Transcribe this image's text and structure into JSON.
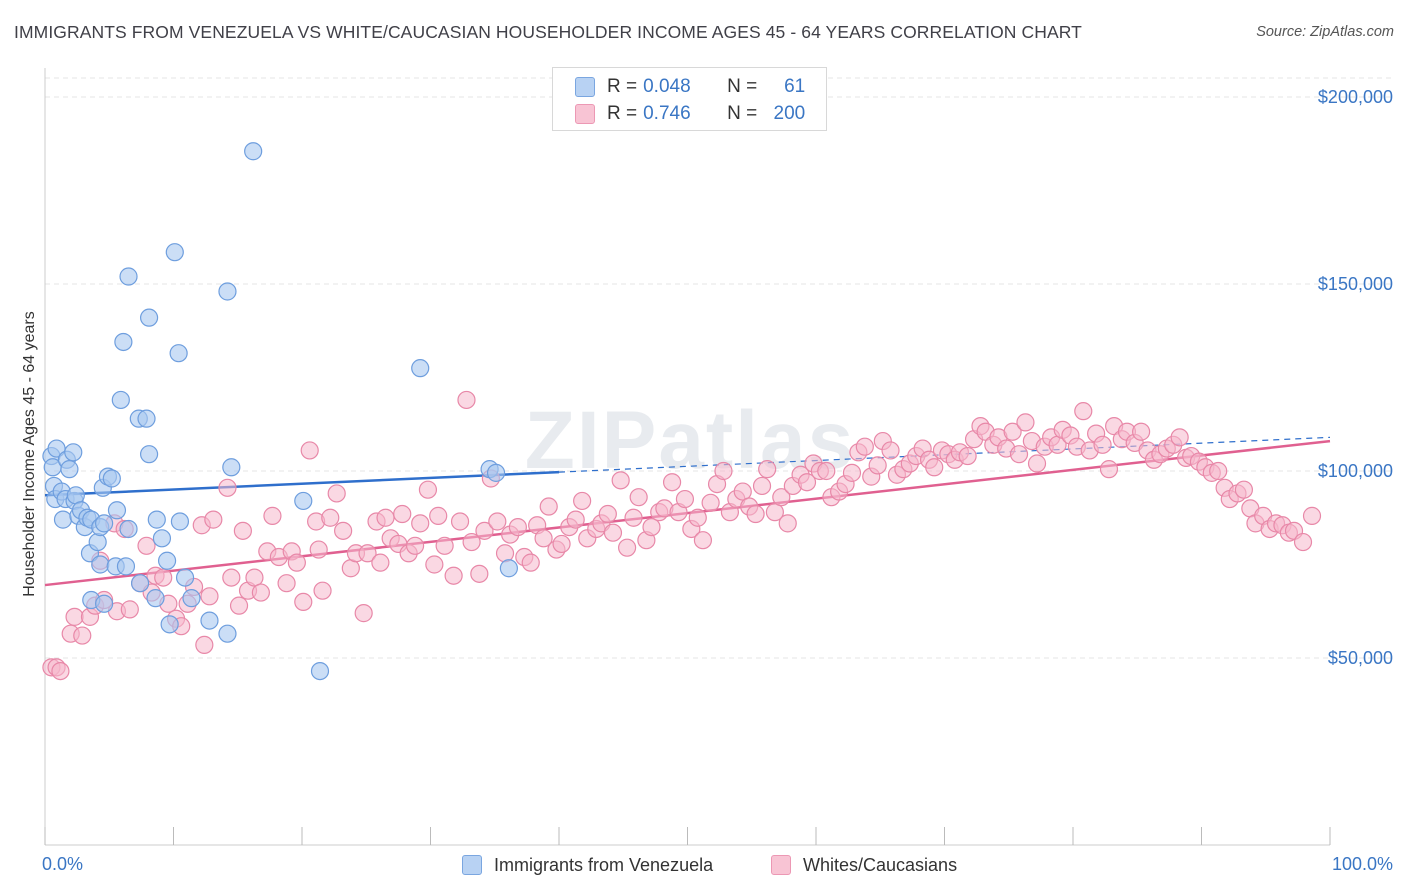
{
  "title": "IMMIGRANTS FROM VENEZUELA VS WHITE/CAUCASIAN HOUSEHOLDER INCOME AGES 45 - 64 YEARS CORRELATION CHART",
  "source": "Source: ZipAtlas.com",
  "watermark": "ZIPatlas",
  "colors": {
    "blue_fill": "#a9c8f0",
    "blue_stroke": "#6e9ede",
    "blue_line": "#2f6fcc",
    "pink_fill": "#f5b8cc",
    "pink_stroke": "#e888a8",
    "pink_line": "#e06090",
    "axis_text": "#3a76c4"
  },
  "legend": {
    "rows": [
      {
        "r_label": "R =",
        "r_value": "0.048",
        "n_label": "N =",
        "n_value": "61"
      },
      {
        "r_label": "R =",
        "r_value": "0.746",
        "n_label": "N =",
        "n_value": "200"
      }
    ]
  },
  "chart_data": {
    "type": "scatter",
    "title": "IMMIGRANTS FROM VENEZUELA VS WHITE/CAUCASIAN HOUSEHOLDER INCOME AGES 45 - 64 YEARS CORRELATION CHART",
    "xlabel": "",
    "ylabel": "Householder Income Ages 45 - 64 years",
    "xlim": [
      0,
      100
    ],
    "ylim": [
      0,
      210000
    ],
    "x_tick_labels": [
      "0.0%",
      "100.0%"
    ],
    "y_tick_labels": [
      "$50,000",
      "$100,000",
      "$150,000",
      "$200,000"
    ],
    "y_ticks": [
      50000,
      100000,
      150000,
      200000
    ],
    "grid": true,
    "legend_position": "top-center",
    "series": [
      {
        "name": "Immigrants from Venezuela",
        "R": 0.048,
        "N": 61,
        "trend": {
          "x0": 0,
          "y0": 93500,
          "x1": 100,
          "y1": 109000,
          "solid_until": 40
        },
        "points": [
          [
            0.5,
            104000
          ],
          [
            0.6,
            101000
          ],
          [
            0.7,
            96000
          ],
          [
            0.8,
            92500
          ],
          [
            0.9,
            106000
          ],
          [
            1.3,
            94500
          ],
          [
            1.4,
            87000
          ],
          [
            1.6,
            92500
          ],
          [
            1.7,
            103000
          ],
          [
            1.9,
            100500
          ],
          [
            2.2,
            105000
          ],
          [
            2.3,
            92000
          ],
          [
            2.4,
            93500
          ],
          [
            2.6,
            88000
          ],
          [
            2.8,
            89500
          ],
          [
            3.1,
            85000
          ],
          [
            3.3,
            87500
          ],
          [
            3.5,
            78000
          ],
          [
            3.6,
            87000
          ],
          [
            3.6,
            65500
          ],
          [
            4.1,
            81000
          ],
          [
            4.3,
            85000
          ],
          [
            4.3,
            75000
          ],
          [
            4.5,
            95500
          ],
          [
            4.6,
            64500
          ],
          [
            4.6,
            86000
          ],
          [
            4.9,
            98500
          ],
          [
            5.2,
            98000
          ],
          [
            5.5,
            74500
          ],
          [
            5.6,
            89500
          ],
          [
            5.9,
            119000
          ],
          [
            6.1,
            134500
          ],
          [
            6.3,
            74500
          ],
          [
            6.5,
            84500
          ],
          [
            6.5,
            152000
          ],
          [
            7.4,
            70000
          ],
          [
            7.3,
            114000
          ],
          [
            7.9,
            114000
          ],
          [
            8.1,
            104500
          ],
          [
            8.1,
            141000
          ],
          [
            8.6,
            66000
          ],
          [
            8.7,
            87000
          ],
          [
            9.1,
            82000
          ],
          [
            9.5,
            76000
          ],
          [
            9.7,
            59000
          ],
          [
            10.1,
            158500
          ],
          [
            10.4,
            131500
          ],
          [
            10.5,
            86500
          ],
          [
            10.9,
            71500
          ],
          [
            11.4,
            66000
          ],
          [
            12.8,
            60000
          ],
          [
            14.2,
            148000
          ],
          [
            14.2,
            56500
          ],
          [
            14.5,
            101000
          ],
          [
            16.2,
            185500
          ],
          [
            20.1,
            92000
          ],
          [
            21.4,
            46500
          ],
          [
            29.2,
            127500
          ],
          [
            34.6,
            100500
          ],
          [
            35.1,
            99500
          ],
          [
            36.1,
            74000
          ]
        ]
      },
      {
        "name": "Whites/Caucasians",
        "R": 0.746,
        "N": 200,
        "trend": {
          "x0": 0,
          "y0": 69500,
          "x1": 100,
          "y1": 108000
        },
        "points": [
          [
            0.5,
            47500
          ],
          [
            0.9,
            47500
          ],
          [
            1.2,
            46500
          ],
          [
            2.0,
            56500
          ],
          [
            2.3,
            61000
          ],
          [
            2.9,
            56000
          ],
          [
            3.5,
            61000
          ],
          [
            3.9,
            64000
          ],
          [
            4.3,
            76000
          ],
          [
            4.6,
            65500
          ],
          [
            5.4,
            86000
          ],
          [
            5.6,
            62500
          ],
          [
            6.2,
            84500
          ],
          [
            6.6,
            63000
          ],
          [
            7.4,
            70000
          ],
          [
            7.9,
            80000
          ],
          [
            8.3,
            67500
          ],
          [
            8.6,
            72000
          ],
          [
            9.2,
            71500
          ],
          [
            9.6,
            64500
          ],
          [
            10.2,
            60500
          ],
          [
            10.6,
            58500
          ],
          [
            11.1,
            64500
          ],
          [
            11.6,
            69000
          ],
          [
            12.2,
            85500
          ],
          [
            12.4,
            53500
          ],
          [
            12.8,
            66500
          ],
          [
            13.1,
            87000
          ],
          [
            14.2,
            95500
          ],
          [
            14.5,
            71500
          ],
          [
            15.1,
            64000
          ],
          [
            15.4,
            84000
          ],
          [
            15.8,
            68000
          ],
          [
            16.3,
            71500
          ],
          [
            16.8,
            67500
          ],
          [
            17.3,
            78500
          ],
          [
            17.7,
            88000
          ],
          [
            18.2,
            77000
          ],
          [
            18.8,
            70000
          ],
          [
            19.2,
            78500
          ],
          [
            19.6,
            75500
          ],
          [
            20.1,
            65000
          ],
          [
            20.6,
            105500
          ],
          [
            21.1,
            86500
          ],
          [
            21.3,
            79000
          ],
          [
            21.6,
            68000
          ],
          [
            22.2,
            87500
          ],
          [
            22.7,
            94000
          ],
          [
            23.2,
            84000
          ],
          [
            23.8,
            74000
          ],
          [
            24.2,
            78000
          ],
          [
            24.8,
            62000
          ],
          [
            25.1,
            78000
          ],
          [
            25.8,
            86500
          ],
          [
            26.1,
            75500
          ],
          [
            26.5,
            87500
          ],
          [
            26.9,
            82000
          ],
          [
            27.5,
            80500
          ],
          [
            27.8,
            88500
          ],
          [
            28.3,
            78000
          ],
          [
            28.8,
            80000
          ],
          [
            29.2,
            86000
          ],
          [
            29.8,
            95000
          ],
          [
            30.3,
            75000
          ],
          [
            30.6,
            88000
          ],
          [
            31.1,
            80000
          ],
          [
            31.8,
            72000
          ],
          [
            32.3,
            86500
          ],
          [
            32.8,
            119000
          ],
          [
            33.2,
            81000
          ],
          [
            33.8,
            72500
          ],
          [
            34.2,
            84000
          ],
          [
            34.7,
            98000
          ],
          [
            35.2,
            86500
          ],
          [
            35.8,
            78000
          ],
          [
            36.2,
            83000
          ],
          [
            36.8,
            85000
          ],
          [
            37.3,
            77000
          ],
          [
            37.8,
            75500
          ],
          [
            38.3,
            85500
          ],
          [
            38.8,
            82000
          ],
          [
            39.2,
            90500
          ],
          [
            39.8,
            79000
          ],
          [
            40.2,
            80500
          ],
          [
            40.8,
            85000
          ],
          [
            41.3,
            87000
          ],
          [
            41.8,
            92000
          ],
          [
            42.2,
            82000
          ],
          [
            42.9,
            84500
          ],
          [
            43.3,
            86000
          ],
          [
            43.8,
            88500
          ],
          [
            44.2,
            83500
          ],
          [
            44.8,
            97500
          ],
          [
            45.3,
            79500
          ],
          [
            45.8,
            87500
          ],
          [
            46.2,
            93000
          ],
          [
            46.8,
            81500
          ],
          [
            47.2,
            85000
          ],
          [
            47.8,
            89000
          ],
          [
            48.2,
            90000
          ],
          [
            48.8,
            97000
          ],
          [
            49.3,
            89000
          ],
          [
            49.8,
            92500
          ],
          [
            50.3,
            84500
          ],
          [
            50.8,
            87500
          ],
          [
            51.2,
            81500
          ],
          [
            51.8,
            91500
          ],
          [
            52.3,
            96500
          ],
          [
            52.8,
            100000
          ],
          [
            53.3,
            89000
          ],
          [
            53.8,
            92500
          ],
          [
            54.3,
            94500
          ],
          [
            54.8,
            90500
          ],
          [
            55.3,
            88500
          ],
          [
            55.8,
            96000
          ],
          [
            56.2,
            100500
          ],
          [
            56.8,
            89000
          ],
          [
            57.3,
            93000
          ],
          [
            57.8,
            86000
          ],
          [
            58.2,
            96000
          ],
          [
            58.8,
            99000
          ],
          [
            59.3,
            97000
          ],
          [
            59.8,
            102000
          ],
          [
            60.3,
            100000
          ],
          [
            60.8,
            100000
          ],
          [
            61.2,
            93000
          ],
          [
            61.8,
            94500
          ],
          [
            62.3,
            96500
          ],
          [
            62.8,
            99500
          ],
          [
            63.3,
            105000
          ],
          [
            63.8,
            106500
          ],
          [
            64.3,
            98500
          ],
          [
            64.8,
            101500
          ],
          [
            65.2,
            108000
          ],
          [
            65.8,
            105500
          ],
          [
            66.3,
            99000
          ],
          [
            66.8,
            100500
          ],
          [
            67.3,
            102000
          ],
          [
            67.8,
            104000
          ],
          [
            68.3,
            106000
          ],
          [
            68.8,
            103000
          ],
          [
            69.2,
            101000
          ],
          [
            69.8,
            105500
          ],
          [
            70.3,
            104500
          ],
          [
            70.8,
            103000
          ],
          [
            71.2,
            105000
          ],
          [
            71.8,
            104000
          ],
          [
            72.3,
            108500
          ],
          [
            72.8,
            112000
          ],
          [
            73.2,
            110500
          ],
          [
            73.8,
            107000
          ],
          [
            74.2,
            109000
          ],
          [
            74.8,
            106000
          ],
          [
            75.3,
            110500
          ],
          [
            75.8,
            104500
          ],
          [
            76.3,
            113000
          ],
          [
            76.8,
            108000
          ],
          [
            77.2,
            102000
          ],
          [
            77.8,
            106500
          ],
          [
            78.3,
            109000
          ],
          [
            78.8,
            107000
          ],
          [
            79.2,
            111000
          ],
          [
            79.8,
            109500
          ],
          [
            80.3,
            106500
          ],
          [
            80.8,
            116000
          ],
          [
            81.3,
            105500
          ],
          [
            81.8,
            110000
          ],
          [
            82.3,
            107000
          ],
          [
            82.8,
            100500
          ],
          [
            83.2,
            112000
          ],
          [
            83.8,
            108500
          ],
          [
            84.2,
            110500
          ],
          [
            84.8,
            107500
          ],
          [
            85.3,
            110500
          ],
          [
            85.8,
            105500
          ],
          [
            86.3,
            103000
          ],
          [
            86.8,
            104500
          ],
          [
            87.3,
            106000
          ],
          [
            87.8,
            107000
          ],
          [
            88.3,
            109000
          ],
          [
            88.8,
            103500
          ],
          [
            89.2,
            104000
          ],
          [
            89.8,
            102500
          ],
          [
            90.3,
            101000
          ],
          [
            90.8,
            99500
          ],
          [
            91.3,
            100000
          ],
          [
            91.8,
            95500
          ],
          [
            92.2,
            92500
          ],
          [
            92.8,
            94000
          ],
          [
            93.3,
            95000
          ],
          [
            93.8,
            90000
          ],
          [
            94.2,
            86000
          ],
          [
            94.8,
            88000
          ],
          [
            95.3,
            84500
          ],
          [
            95.8,
            86000
          ],
          [
            96.3,
            85500
          ],
          [
            96.8,
            83500
          ],
          [
            97.2,
            84000
          ],
          [
            97.9,
            81000
          ],
          [
            98.6,
            88000
          ]
        ]
      }
    ]
  },
  "bottom_legend": [
    {
      "label": "Immigrants from Venezuela"
    },
    {
      "label": "Whites/Caucasians"
    }
  ]
}
